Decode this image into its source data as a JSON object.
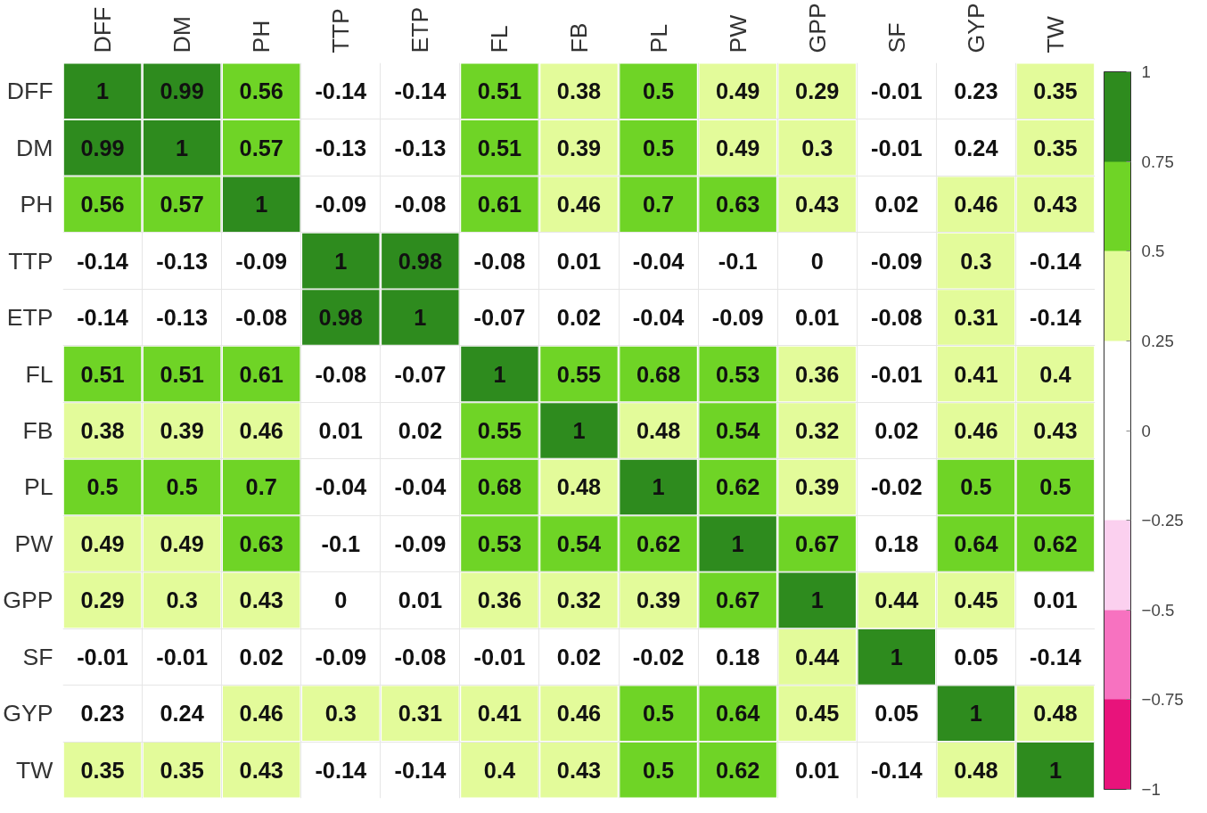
{
  "chart_data": {
    "type": "heatmap",
    "categories": [
      "DFF",
      "DM",
      "PH",
      "TTP",
      "ETP",
      "FL",
      "FB",
      "PL",
      "PW",
      "GPP",
      "SF",
      "GYP",
      "TW"
    ],
    "y_categories": [
      "DFF",
      "DM",
      "PH",
      "TTP",
      "ETP",
      "FL",
      "FB",
      "PL",
      "PW",
      "GPP",
      "SF",
      "GYP",
      "TW"
    ],
    "cells": [
      [
        1,
        0.99,
        0.56,
        -0.14,
        -0.14,
        0.51,
        0.38,
        0.5,
        0.49,
        0.29,
        -0.01,
        0.23,
        0.35
      ],
      [
        0.99,
        1,
        0.57,
        -0.13,
        -0.13,
        0.51,
        0.39,
        0.5,
        0.49,
        0.3,
        -0.01,
        0.24,
        0.35
      ],
      [
        0.56,
        0.57,
        1,
        -0.09,
        -0.08,
        0.61,
        0.46,
        0.7,
        0.63,
        0.43,
        0.02,
        0.46,
        0.43
      ],
      [
        -0.14,
        -0.13,
        -0.09,
        1,
        0.98,
        -0.08,
        0.01,
        -0.04,
        -0.1,
        0,
        -0.09,
        0.3,
        -0.14
      ],
      [
        -0.14,
        -0.13,
        -0.08,
        0.98,
        1,
        -0.07,
        0.02,
        -0.04,
        -0.09,
        0.01,
        -0.08,
        0.31,
        -0.14
      ],
      [
        0.51,
        0.51,
        0.61,
        -0.08,
        -0.07,
        1,
        0.55,
        0.68,
        0.53,
        0.36,
        -0.01,
        0.41,
        0.4
      ],
      [
        0.38,
        0.39,
        0.46,
        0.01,
        0.02,
        0.55,
        1,
        0.48,
        0.54,
        0.32,
        0.02,
        0.46,
        0.43
      ],
      [
        0.5,
        0.5,
        0.7,
        -0.04,
        -0.04,
        0.68,
        0.48,
        1,
        0.62,
        0.39,
        -0.02,
        0.5,
        0.5
      ],
      [
        0.49,
        0.49,
        0.63,
        -0.1,
        -0.09,
        0.53,
        0.54,
        0.62,
        1,
        0.67,
        0.18,
        0.64,
        0.62
      ],
      [
        0.29,
        0.3,
        0.43,
        0,
        0.01,
        0.36,
        0.32,
        0.39,
        0.67,
        1,
        0.44,
        0.45,
        0.01
      ],
      [
        -0.01,
        -0.01,
        0.02,
        -0.09,
        -0.08,
        -0.01,
        0.02,
        -0.02,
        0.18,
        0.44,
        1,
        0.05,
        -0.14
      ],
      [
        0.23,
        0.24,
        0.46,
        0.3,
        0.31,
        0.41,
        0.46,
        0.5,
        0.64,
        0.45,
        0.05,
        1,
        0.48
      ],
      [
        0.35,
        0.35,
        0.43,
        -0.14,
        -0.14,
        0.4,
        0.43,
        0.5,
        0.62,
        0.01,
        -0.14,
        0.48,
        1
      ]
    ],
    "colors": [
      "#e8137b",
      "#f772c0",
      "#fbd0ef",
      "#ffffff",
      "#ffffff",
      "#e3fb9a",
      "#6fd426",
      "#2e8b1e"
    ],
    "clim": [
      -1,
      1
    ],
    "cticks": [
      -1,
      -0.75,
      -0.5,
      -0.25,
      0,
      0.25,
      0.5,
      0.75,
      1
    ],
    "data_labels": true,
    "grid": true
  }
}
